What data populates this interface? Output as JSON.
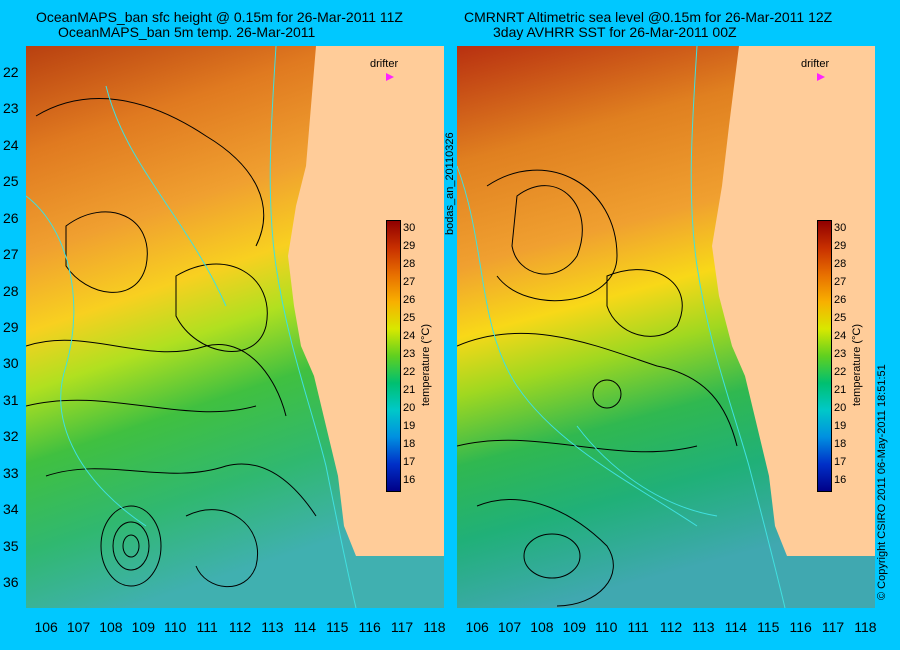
{
  "left_panel": {
    "title_line1": "OceanMAPS_ban sfc height @ 0.15m for 26-Mar-2011 11Z",
    "title_line2": "OceanMAPS_ban 5m temp. 26-Mar-2011"
  },
  "right_panel": {
    "title_line1": "CMRNRT Altimetric sea level  @0.15m  for 26-Mar-2011 12Z",
    "title_line2": "3day AVHRR SST for 26-Mar-2011 00Z"
  },
  "map_extent": {
    "lon_min": 105.4,
    "lon_max": 118.3,
    "lat_north": 21.3,
    "lat_south": 36.7
  },
  "lat_ticks": [
    "22",
    "23",
    "24",
    "25",
    "26",
    "27",
    "28",
    "29",
    "30",
    "31",
    "32",
    "33",
    "34",
    "35",
    "36"
  ],
  "lon_ticks": [
    "106",
    "107",
    "108",
    "109",
    "110",
    "111",
    "112",
    "113",
    "114",
    "115",
    "116",
    "117",
    "118"
  ],
  "colorbar": {
    "title": "temperature (°C)",
    "labels": [
      "30",
      "29",
      "28",
      "27",
      "26",
      "25",
      "24",
      "23",
      "22",
      "21",
      "20",
      "19",
      "18",
      "17",
      "16"
    ],
    "min": 15.5,
    "max": 30.5
  },
  "drifter_label": "drifter",
  "side_label": "bodas_an_20110326",
  "copyright": "© Copyright CSIRO 2011  06-May-2011 18:51:51",
  "colors": {
    "background": "#00c8ff",
    "land": "#ffcc99",
    "contour": "#000000",
    "isobath": "#40e0e0",
    "drifter": "#ff22ff"
  }
}
